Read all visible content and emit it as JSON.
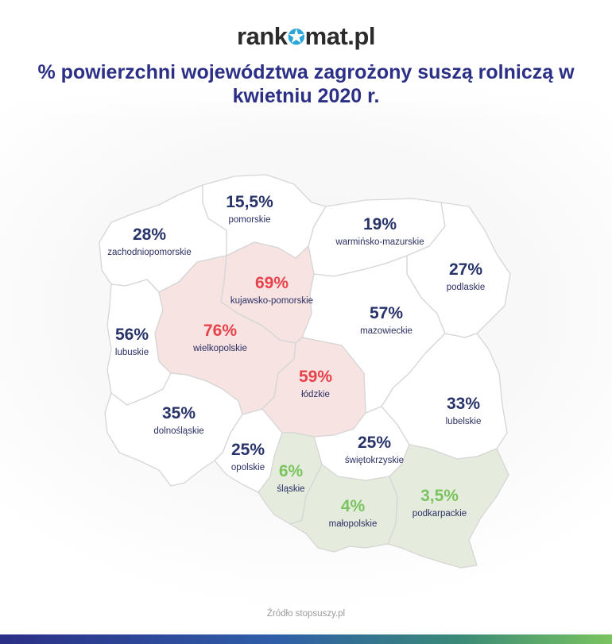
{
  "logo": {
    "text_left": "rank",
    "star": "✪",
    "text_right": "mat.pl"
  },
  "title": "% powierzchni województwa zagrożony suszą rolniczą w kwietniu 2020 r.",
  "colors": {
    "low": "#7ac35f",
    "mid": "#283369",
    "high": "#e8414a"
  },
  "regions": [
    {
      "id": "zachodniopomorskie",
      "value": "28%",
      "name": "zachodniopomorskie"
    },
    {
      "id": "pomorskie",
      "value": "15,5%",
      "name": "pomorskie"
    },
    {
      "id": "warminsko-mazurskie",
      "value": "19%",
      "name": "warmińsko-mazurskie"
    },
    {
      "id": "podlaskie",
      "value": "27%",
      "name": "podlaskie"
    },
    {
      "id": "kujawsko-pomorskie",
      "value": "69%",
      "name": "kujawsko-pomorskie"
    },
    {
      "id": "lubuskie",
      "value": "56%",
      "name": "lubuskie"
    },
    {
      "id": "wielkopolskie",
      "value": "76%",
      "name": "wielkopolskie"
    },
    {
      "id": "mazowieckie",
      "value": "57%",
      "name": "mazowieckie"
    },
    {
      "id": "lodzkie",
      "value": "59%",
      "name": "łódzkie"
    },
    {
      "id": "lubelskie",
      "value": "33%",
      "name": "lubelskie"
    },
    {
      "id": "dolnoslaskie",
      "value": "35%",
      "name": "dolnośląskie"
    },
    {
      "id": "opolskie",
      "value": "25%",
      "name": "opolskie"
    },
    {
      "id": "swietokrzyskie",
      "value": "25%",
      "name": "świętokrzyskie"
    },
    {
      "id": "slaskie",
      "value": "6%",
      "name": "śląskie"
    },
    {
      "id": "malopolskie",
      "value": "4%",
      "name": "małopolskie"
    },
    {
      "id": "podkarpackie",
      "value": "3,5%",
      "name": "podkarpackie"
    }
  ],
  "source": "Źródło stopsuszy.pl"
}
